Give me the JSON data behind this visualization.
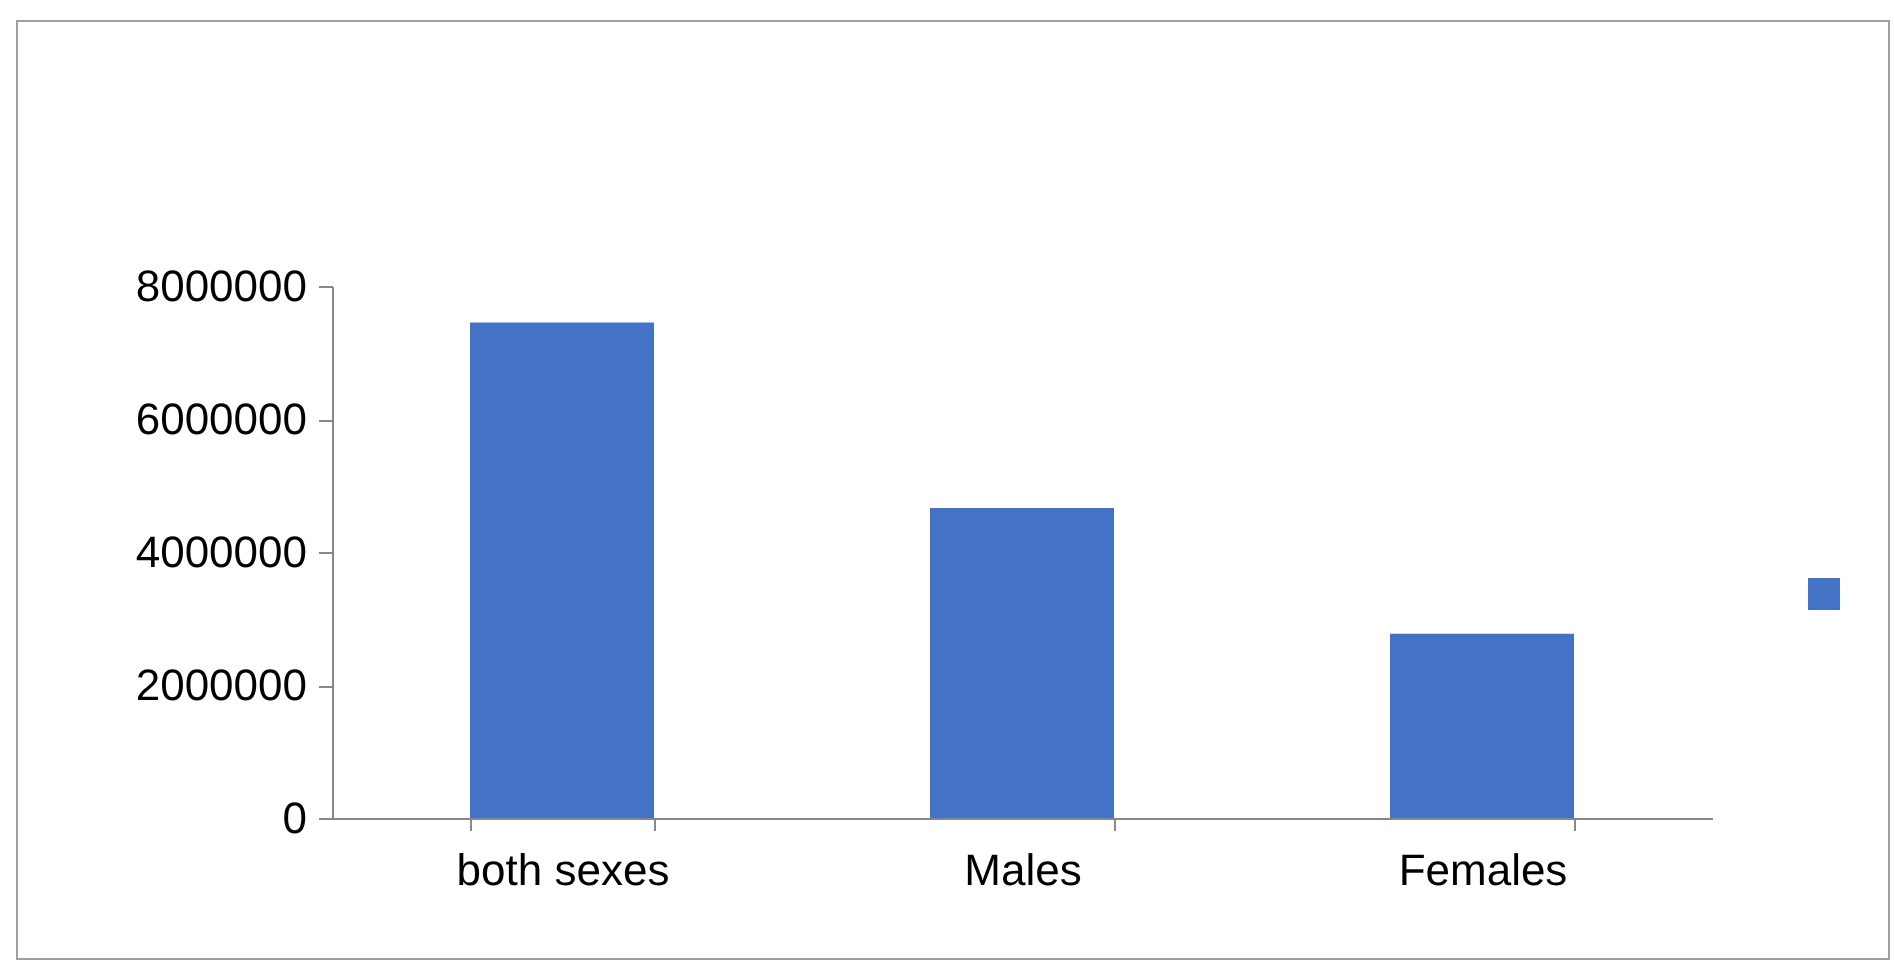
{
  "chart_data": {
    "type": "bar",
    "categories": [
      "both sexes",
      "Males",
      "Females"
    ],
    "series": [
      {
        "color": "#4472c4",
        "values": [
          7450000,
          4660000,
          2770000
        ]
      }
    ],
    "ylim": [
      0,
      8000000
    ],
    "yticks": [
      0,
      2000000,
      4000000,
      6000000,
      8000000
    ],
    "grid": false
  }
}
